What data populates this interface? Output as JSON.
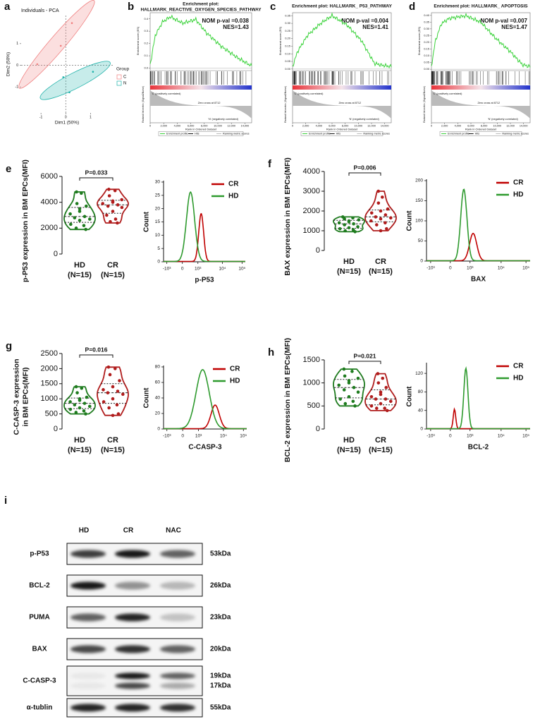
{
  "a": {
    "label": "a",
    "title": "Individuals - PCA",
    "x_label": "Dim1 (50%)",
    "y_label": "Dim2 (50%)",
    "xlim": [
      -1.8,
      1.9
    ],
    "ylim": [
      -2.2,
      2.3
    ],
    "xticks": [
      -1,
      0,
      1
    ],
    "yticks": [
      -1,
      0,
      1
    ],
    "legend_title": "Group",
    "groups": [
      {
        "name": "C",
        "color": "#f08080",
        "points": [
          {
            "x": 0.25,
            "y": 1.95
          },
          {
            "x": -0.2,
            "y": 0.9
          },
          {
            "x": -1.15,
            "y": 0.05
          }
        ]
      },
      {
        "name": "N",
        "color": "#20b2aa",
        "points": [
          {
            "x": 1.1,
            "y": -0.3
          },
          {
            "x": 0.15,
            "y": -1.25
          },
          {
            "x": -0.1,
            "y": -0.55
          }
        ]
      }
    ]
  },
  "b": {
    "label": "b",
    "title": [
      "Enrichment plot:",
      "HALLMARK_REACTIVE_OXYGEN_SPECIES_PATHWAY"
    ],
    "stats": [
      "NOM p-val =0.038",
      "NES=1.43"
    ],
    "es_label": "Enrichment score (ES)",
    "metric_label": "Ranked list metric (Signal2Noise)",
    "pos_label": "'C' (positively correlated)",
    "zero_label": "Zero cross at 8712",
    "neg_label": "'N' (negatively correlated)",
    "x_label": "Rank in Ordered Dataset",
    "legend": [
      "Enrichment profile",
      "Hits",
      "Ranking metric scores"
    ],
    "ylim": [
      -0.02,
      0.45
    ],
    "yticks": [
      {
        "value": 0,
        "label": "0.0"
      },
      0.1,
      0.2,
      0.3,
      0.4
    ],
    "xlim": [
      0,
      15000
    ],
    "xticks": [
      0,
      {
        "value": 2000,
        "label": "2,000"
      },
      {
        "value": 4000,
        "label": "4,000"
      },
      {
        "value": 6000,
        "label": "6,000"
      },
      {
        "value": 8000,
        "label": "8,000"
      },
      {
        "value": 10000,
        "label": "10,000"
      },
      {
        "value": 12000,
        "label": "12,000"
      },
      {
        "value": 14000,
        "label": "14,000"
      }
    ]
  },
  "c": {
    "label": "c",
    "title": [
      "Enrichment plot: HALLMARK_ P53_PATHWAY"
    ],
    "stats": [
      "NOM p-val =0.004",
      "NES=1.41"
    ],
    "es_label": "Enrichment score (ES)",
    "metric_label": "Ranked list metric (Signal2Noise)",
    "pos_label": "'C' (positively correlated)",
    "zero_label": "Zero cross at 8712",
    "neg_label": "'N' (negatively correlated)",
    "x_label": "Rank in Ordered Dataset",
    "legend": [
      "Enrichment profile",
      "Hits",
      "Ranking metric scores"
    ],
    "ylim": [
      -0.01,
      0.37
    ],
    "yticks": [
      {
        "value": 0,
        "label": "0.00"
      },
      0.05,
      {
        "value": 0.1,
        "label": "0.10"
      },
      0.15,
      {
        "value": 0.2,
        "label": "0.20"
      },
      0.25,
      {
        "value": 0.3,
        "label": "0.30"
      },
      0.35
    ],
    "xlim": [
      0,
      15000
    ],
    "xticks": [
      0,
      {
        "value": 2000,
        "label": "2,000"
      },
      {
        "value": 4000,
        "label": "4,000"
      },
      {
        "value": 6000,
        "label": "6,000"
      },
      {
        "value": 8000,
        "label": "8,000"
      },
      {
        "value": 10000,
        "label": "10,000"
      },
      {
        "value": 12000,
        "label": "12,000"
      },
      {
        "value": 14000,
        "label": "14,000"
      }
    ]
  },
  "d": {
    "label": "d",
    "title": [
      "Enrichment plot: HALLMARK_ APOPTOSIS"
    ],
    "stats": [
      "NOM p-val =0.007",
      "NES=1.47"
    ],
    "es_label": "Enrichment score (ES)",
    "metric_label": "Ranked list metric (Signal2Noise)",
    "pos_label": "'C' (positively correlated)",
    "zero_label": "Zero cross at 8712",
    "neg_label": "'N' (negatively correlated)",
    "x_label": "Rank in Ordered Dataset",
    "legend": [
      "Enrichment profile",
      "Hits",
      "Ranking metric scores"
    ],
    "ylim": [
      -0.01,
      0.42
    ],
    "yticks": [
      {
        "value": 0,
        "label": "0.00"
      },
      0.05,
      {
        "value": 0.1,
        "label": "0.10"
      },
      0.15,
      {
        "value": 0.2,
        "label": "0.20"
      },
      0.25,
      {
        "value": 0.3,
        "label": "0.30"
      },
      0.35,
      {
        "value": 0.4,
        "label": "0.40"
      }
    ],
    "xlim": [
      0,
      15000
    ],
    "xticks": [
      0,
      {
        "value": 2000,
        "label": "2,000"
      },
      {
        "value": 4000,
        "label": "4,000"
      },
      {
        "value": 6000,
        "label": "6,000"
      },
      {
        "value": 8000,
        "label": "8,000"
      },
      {
        "value": 10000,
        "label": "10,000"
      },
      {
        "value": 12000,
        "label": "12,000"
      },
      {
        "value": 14000,
        "label": "14,000"
      }
    ]
  },
  "e": {
    "label": "e",
    "y_label": [
      "p-P53 expression in BM EPCs(MFI)"
    ],
    "ylim": [
      0,
      6000
    ],
    "yticks": [
      0,
      2000,
      4000,
      6000
    ],
    "p_label": "P=0.033",
    "groups": [
      {
        "name": "HD",
        "n": "(N=15)",
        "color": "#1e7b1e",
        "values": [
          4800,
          4700,
          3900,
          3700,
          3300,
          3100,
          2900,
          2800,
          2700,
          2600,
          2300,
          2200,
          2000,
          1900,
          3500
        ]
      },
      {
        "name": "CR",
        "n": "(N=15)",
        "color": "#b01c1c",
        "values": [
          5000,
          4900,
          4500,
          4200,
          4000,
          3900,
          3800,
          3700,
          3600,
          3300,
          3000,
          2700,
          2500,
          2400,
          4100
        ]
      }
    ],
    "flow": {
      "y_label": "Count",
      "x_label": "p-P53",
      "ylim": [
        0,
        30
      ],
      "yticks": [
        0,
        5,
        10,
        15,
        20,
        25,
        30
      ],
      "xtick_labels": [
        "-10³",
        "0",
        "10³",
        "10⁴",
        "10⁵"
      ],
      "series": [
        {
          "name": "CR",
          "color": "#c00000"
        },
        {
          "name": "HD",
          "color": "#2e9a2e"
        }
      ]
    }
  },
  "f": {
    "label": "f",
    "y_label": [
      "BAX expression in BM EPCs(MFI)"
    ],
    "ylim": [
      0,
      4000
    ],
    "yticks": [
      0,
      1000,
      2000,
      3000,
      4000
    ],
    "p_label": "P=0.006",
    "groups": [
      {
        "name": "HD",
        "n": "(N=15)",
        "color": "#1e7b1e",
        "values": [
          1700,
          1650,
          1600,
          1550,
          1500,
          1400,
          1350,
          1300,
          1200,
          1150,
          1100,
          1050,
          1000,
          950,
          1450
        ]
      },
      {
        "name": "CR",
        "n": "(N=15)",
        "color": "#b01c1c",
        "values": [
          3000,
          2700,
          2400,
          2100,
          2000,
          1900,
          1800,
          1700,
          1650,
          1600,
          1500,
          1400,
          1300,
          1100,
          1000
        ]
      }
    ],
    "flow": {
      "y_label": "Count",
      "x_label": "BAX",
      "ylim": [
        0,
        200
      ],
      "yticks": [
        0,
        50,
        100,
        150,
        200
      ],
      "xtick_labels": [
        "-10³",
        "0",
        "10³",
        "10⁴",
        "10⁵"
      ],
      "series": [
        {
          "name": "CR",
          "color": "#c00000"
        },
        {
          "name": "HD",
          "color": "#2e9a2e"
        }
      ]
    }
  },
  "g": {
    "label": "g",
    "y_label": [
      "C-CASP-3 expression",
      "in BM EPCs(MFI)"
    ],
    "ylim": [
      0,
      2500
    ],
    "yticks": [
      0,
      500,
      1000,
      1500,
      2000,
      2500
    ],
    "p_label": "P=0.016",
    "groups": [
      {
        "name": "HD",
        "n": "(N=15)",
        "color": "#1e7b1e",
        "values": [
          1400,
          1350,
          1200,
          1050,
          950,
          900,
          850,
          800,
          750,
          700,
          650,
          600,
          550,
          500,
          1000
        ]
      },
      {
        "name": "CR",
        "n": "(N=15)",
        "color": "#b01c1c",
        "values": [
          2050,
          2000,
          1800,
          1600,
          1400,
          1300,
          1250,
          1200,
          1150,
          1000,
          900,
          800,
          700,
          500,
          450
        ]
      }
    ],
    "flow": {
      "y_label": "Count",
      "x_label": "C-CASP-3",
      "ylim": [
        0,
        80
      ],
      "yticks": [
        0,
        20,
        40,
        60,
        80
      ],
      "xtick_labels": [
        "-10³",
        "0",
        "10³",
        "10⁴",
        "10⁵"
      ],
      "series": [
        {
          "name": "CR",
          "color": "#c00000"
        },
        {
          "name": "HD",
          "color": "#2e9a2e"
        }
      ]
    }
  },
  "h": {
    "label": "h",
    "y_label": [
      "BCL-2 expression in BM EPCs(MFI)"
    ],
    "ylim": [
      0,
      1500
    ],
    "yticks": [
      0,
      500,
      1000,
      1500
    ],
    "p_label": "P=0.021",
    "groups": [
      {
        "name": "HD",
        "n": "(N=15)",
        "color": "#1e7b1e",
        "values": [
          1300,
          1250,
          1150,
          1100,
          1000,
          950,
          900,
          850,
          800,
          700,
          650,
          600,
          550,
          500,
          1050
        ]
      },
      {
        "name": "CR",
        "n": "(N=15)",
        "color": "#b01c1c",
        "values": [
          1200,
          1100,
          1000,
          900,
          800,
          700,
          650,
          650,
          600,
          550,
          500,
          450,
          450,
          400,
          750
        ]
      }
    ],
    "flow": {
      "y_label": "Count",
      "x_label": "BCL-2",
      "ylim": [
        0,
        140
      ],
      "yticks": [
        0,
        40,
        80,
        120
      ],
      "xtick_labels": [
        "-10³",
        "0",
        "10³",
        "10⁴",
        "10⁵"
      ],
      "series": [
        {
          "name": "CR",
          "color": "#c00000"
        },
        {
          "name": "HD",
          "color": "#2e9a2e"
        }
      ]
    }
  },
  "i": {
    "label": "i",
    "lanes": [
      "HD",
      "CR",
      "NAC"
    ],
    "rows": [
      {
        "protein": "p-P53",
        "sizes": [
          "53kDa"
        ]
      },
      {
        "protein": "BCL-2",
        "sizes": [
          "26kDa"
        ]
      },
      {
        "protein": "PUMA",
        "sizes": [
          "23kDa"
        ]
      },
      {
        "protein": "BAX",
        "sizes": [
          "20kDa"
        ]
      },
      {
        "protein": "C-CASP-3",
        "sizes": [
          "19kDa",
          "17kDa"
        ]
      },
      {
        "protein": "α-tublin",
        "sizes": [
          "55kDa"
        ]
      }
    ]
  }
}
